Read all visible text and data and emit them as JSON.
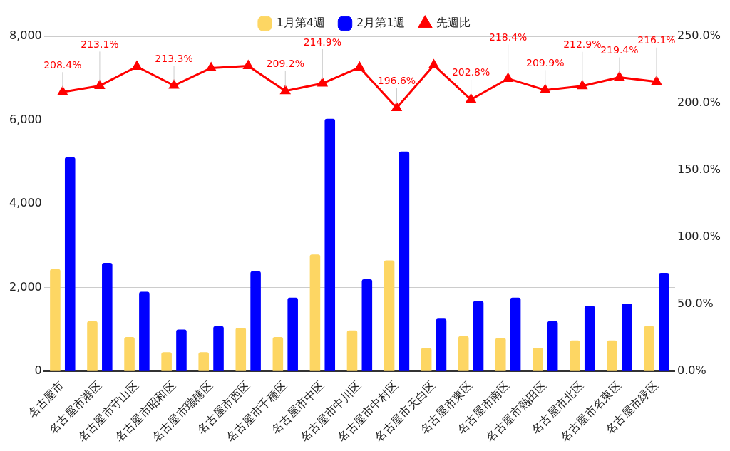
{
  "chart_data": {
    "type": "bar",
    "categories": [
      "名古屋市",
      "名古屋市港区",
      "名古屋市守山区",
      "名古屋市昭和区",
      "名古屋市瑞穂区",
      "名古屋市西区",
      "名古屋市千種区",
      "名古屋市中区",
      "名古屋市中川区",
      "名古屋市中村区",
      "名古屋市天白区",
      "名古屋市東区",
      "名古屋市南区",
      "名古屋市熱田区",
      "名古屋市北区",
      "名古屋市名東区",
      "名古屋市緑区"
    ],
    "series": [
      {
        "name": "1月第4週",
        "color": "#fdd663",
        "values": [
          2440,
          1200,
          820,
          460,
          460,
          1040,
          820,
          2790,
          980,
          2650,
          560,
          840,
          800,
          560,
          740,
          740,
          1080
        ]
      },
      {
        "name": "2月第1週",
        "color": "#0000ff",
        "values": [
          5110,
          2590,
          1900,
          1000,
          1080,
          2390,
          1760,
          6030,
          2200,
          5250,
          1260,
          1680,
          1760,
          1200,
          1560,
          1620,
          2350
        ]
      },
      {
        "name": "先週比",
        "type": "line",
        "axis": "y2",
        "color": "#ff0000",
        "marker": "triangle",
        "values": [
          208.4,
          213.1,
          227.4,
          213.3,
          226.4,
          227.9,
          209.2,
          214.9,
          226.8,
          196.6,
          228.5,
          202.8,
          218.4,
          209.9,
          212.9,
          219.4,
          216.1
        ],
        "value_labels": [
          "208.4%",
          "213.1%",
          null,
          "213.3%",
          null,
          null,
          "209.2%",
          "214.9%",
          null,
          "196.6%",
          null,
          "202.8%",
          "218.4%",
          "209.9%",
          "212.9%",
          "219.4%",
          "216.1%"
        ]
      }
    ],
    "ylim": [
      0,
      8000
    ],
    "yticks": [
      0,
      {
        "value": 2000,
        "label": "2,000"
      },
      {
        "value": 4000,
        "label": "4,000"
      },
      {
        "value": 6000,
        "label": "6,000"
      },
      {
        "value": 8000,
        "label": "8,000"
      }
    ],
    "y2lim": [
      0,
      250
    ],
    "y2ticks": [
      {
        "value": 0,
        "label": "0.0%"
      },
      {
        "value": 50,
        "label": "50.0%"
      },
      {
        "value": 100,
        "label": "100.0%"
      },
      {
        "value": 150,
        "label": "150.0%"
      },
      {
        "value": 200,
        "label": "200.0%"
      },
      {
        "value": 250,
        "label": "250.0%"
      }
    ],
    "grid": "y",
    "legend": "top"
  }
}
